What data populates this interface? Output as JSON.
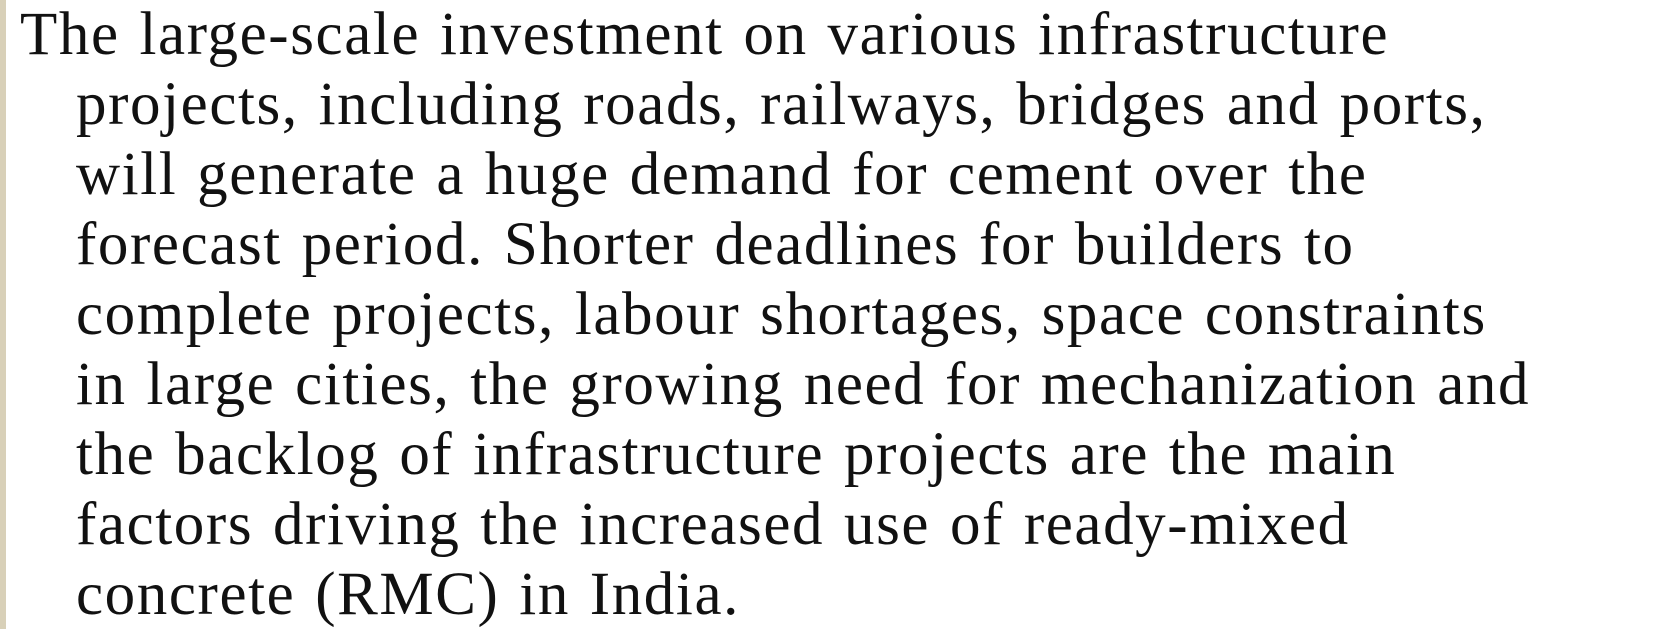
{
  "paragraph": {
    "lines": [
      "The large-scale investment on various infrastructure",
      "projects, including roads, railways, bridges and ports,",
      "will generate a huge demand for cement over the",
      "forecast period. Shorter deadlines for builders to",
      "complete projects, labour shortages, space constraints",
      "in large cities, the growing need for mechanization and",
      "the backlog of infrastructure projects are the main",
      "factors driving the increased use of ready-mixed",
      "concrete (RMC) in India."
    ]
  }
}
